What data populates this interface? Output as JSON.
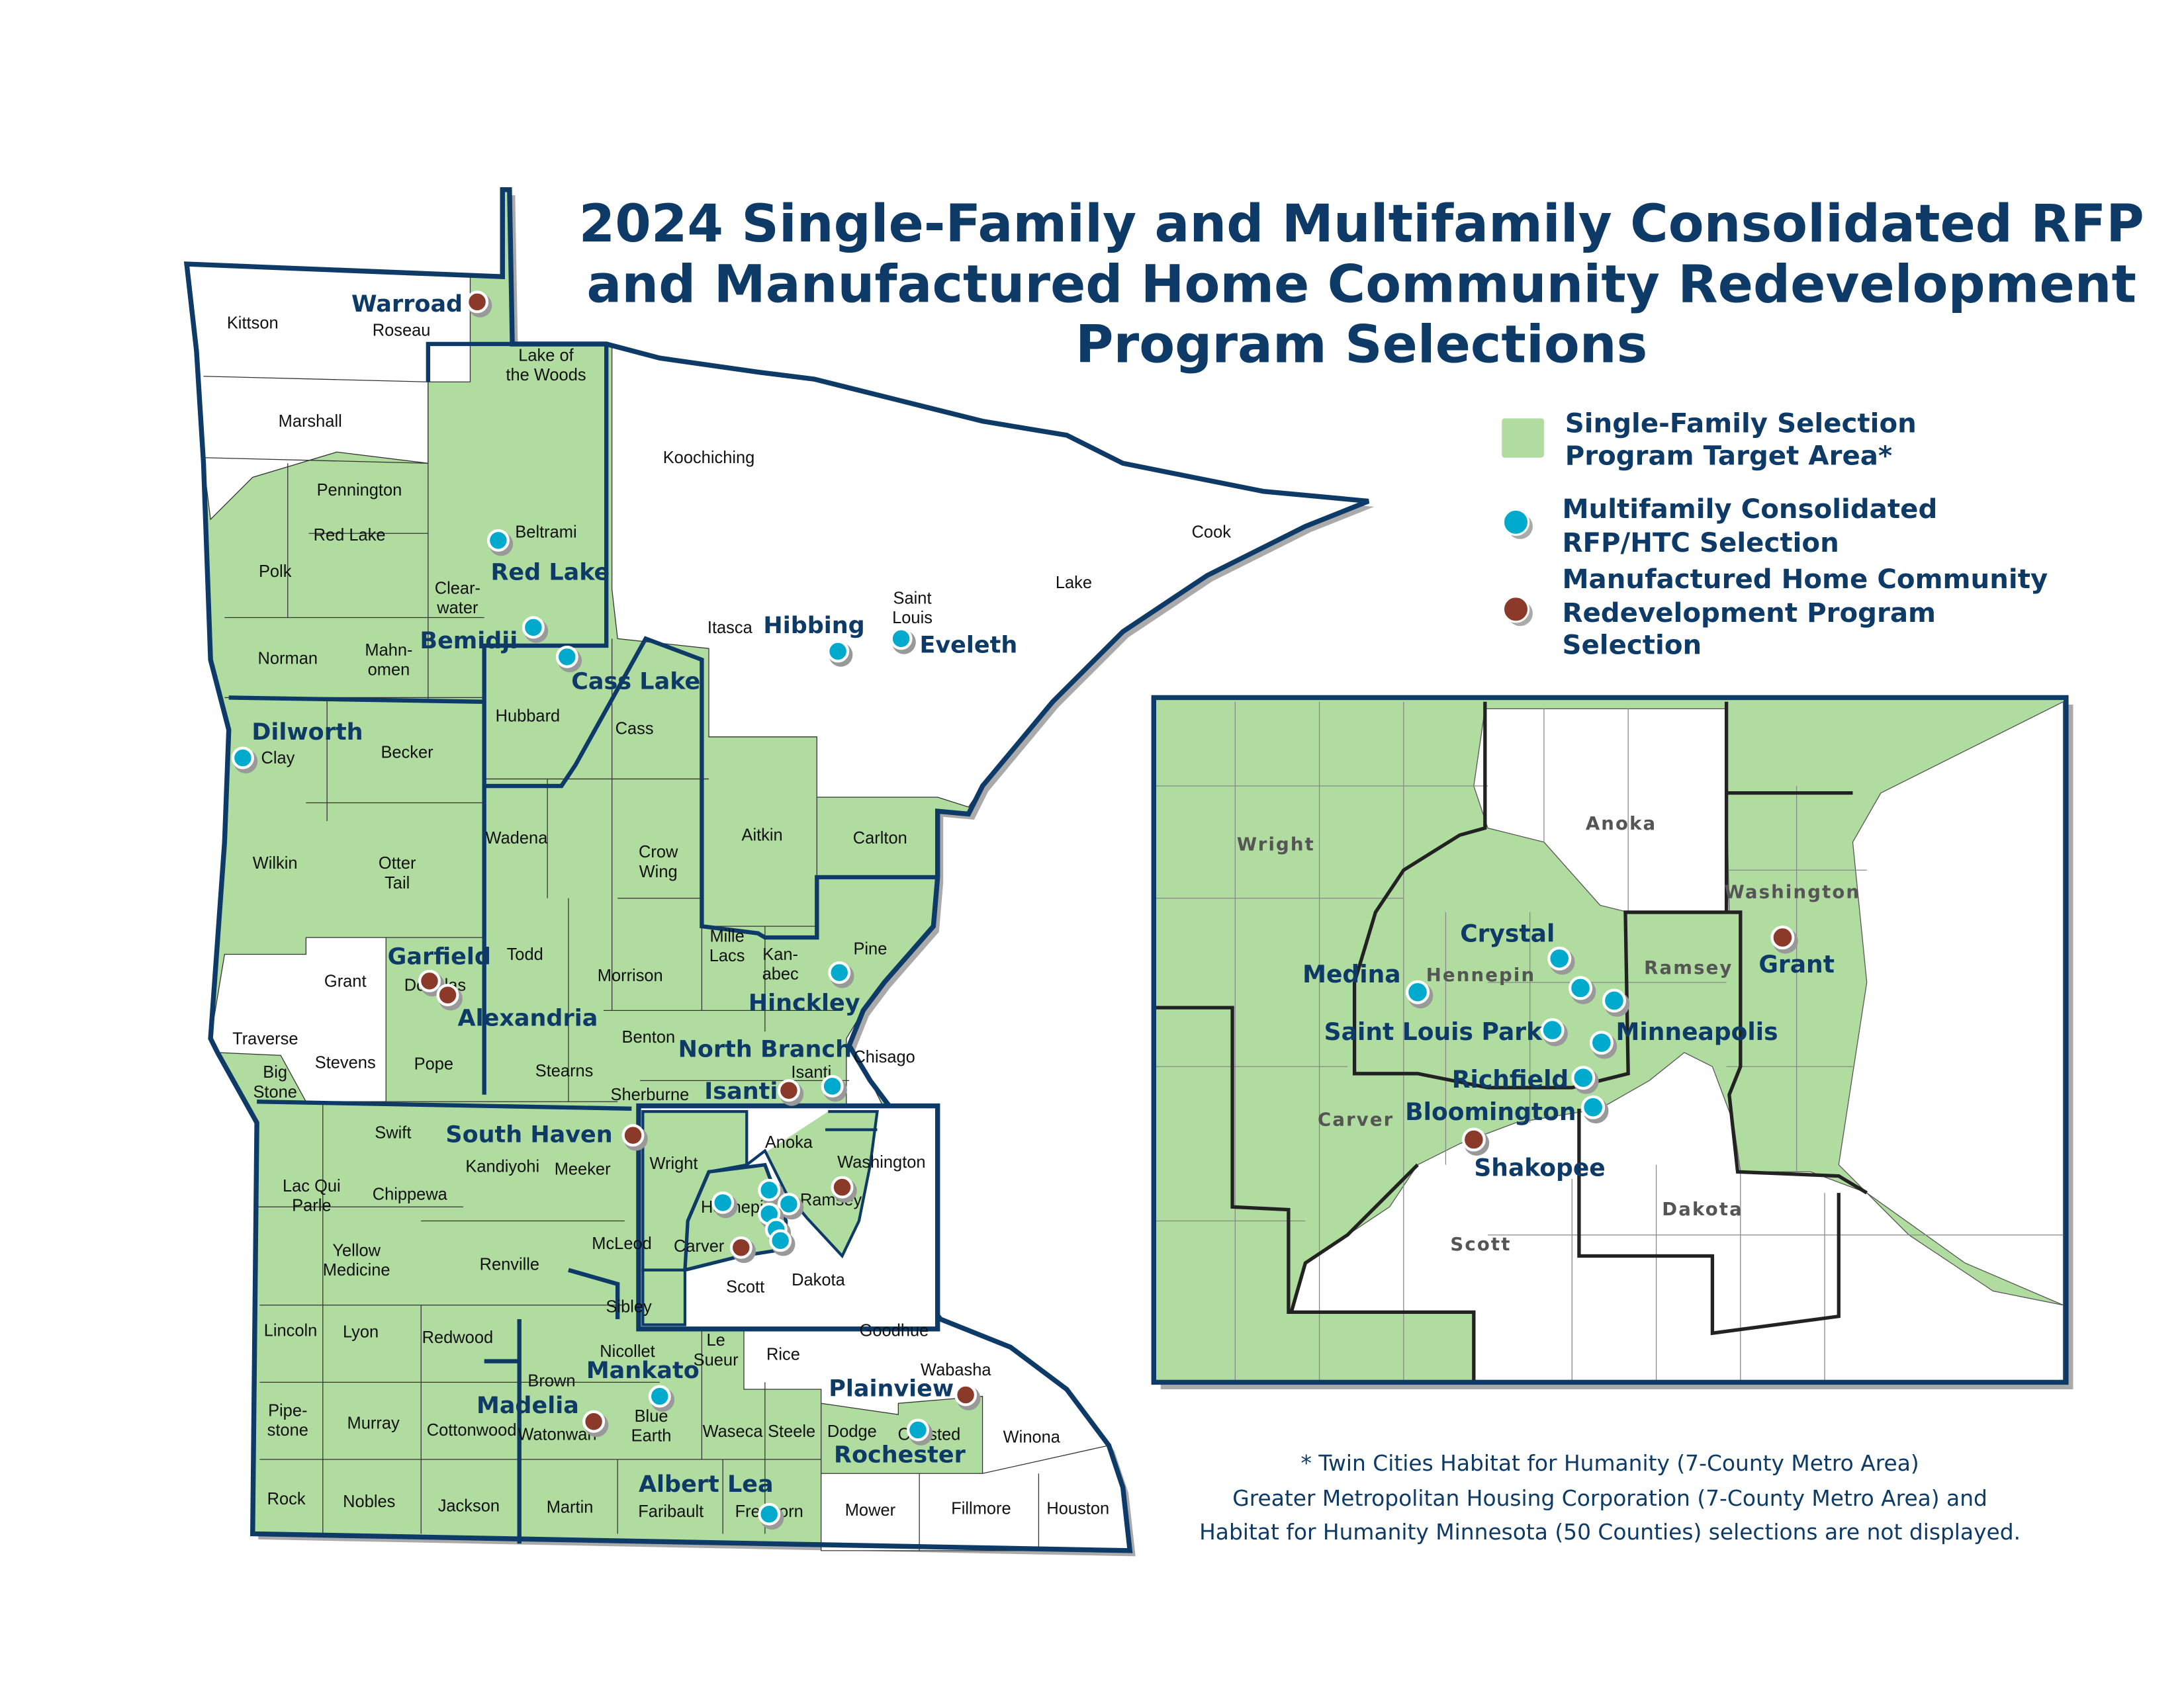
{
  "title": {
    "lines": [
      "2024 Single-Family and Multifamily Consolidated RFP",
      "and Manufactured Home Community Redevelopment",
      "Program Selections"
    ]
  },
  "colors": {
    "target_area": "#b0dca0",
    "multifamily": "#00aacc",
    "manufactured_home": "#8b3a2a",
    "border": "#0d3a66",
    "text": "#0d3a66"
  },
  "legend": {
    "items": [
      {
        "symbol": "green-square",
        "lines": [
          "Single-Family Selection",
          "Program Target Area*"
        ]
      },
      {
        "symbol": "blue-dot",
        "lines": [
          "Multifamily Consolidated",
          "RFP/HTC Selection"
        ]
      },
      {
        "symbol": "brown-dot",
        "lines": [
          "Manufactured Home Community",
          "Redevelopment Program",
          "Selection"
        ]
      }
    ]
  },
  "footnote": {
    "lines": [
      "* Twin Cities Habitat for Humanity (7-County Metro Area)",
      "Greater Metropolitan Housing Corporation (7-County Metro Area) and",
      "Habitat for Humanity Minnesota (50 Counties) selections are not displayed."
    ]
  },
  "main_map": {
    "county_labels": [
      "Kittson",
      "Roseau",
      "Lake of\nthe Woods",
      "Marshall",
      "Koochiching",
      "Pennington",
      "Red Lake",
      "Beltrami",
      "Polk",
      "Clear-\nwater",
      "Cook",
      "Lake",
      "Saint\nLouis",
      "Itasca",
      "Norman",
      "Mahn-\nomen",
      "Hubbard",
      "Cass",
      "Clay",
      "Becker",
      "Wadena",
      "Crow\nWing",
      "Aitkin",
      "Carlton",
      "Wilkin",
      "Otter\nTail",
      "Todd",
      "Mille\nLacs",
      "Kan-\nabec",
      "Pine",
      "Morrison",
      "Grant",
      "Douglas",
      "Traverse",
      "Stevens",
      "Pope",
      "Benton",
      "Chisago",
      "Isanti",
      "Stearns",
      "Big\nStone",
      "Sherburne",
      "Swift",
      "Anoka",
      "Kandiyohi",
      "Meeker",
      "Wright",
      "Washington",
      "Lac Qui\nParle",
      "Chippewa",
      "Hennepin",
      "Ramsey",
      "McLeod",
      "Carver",
      "Yellow\nMedicine",
      "Renville",
      "Scott",
      "Dakota",
      "Sibley",
      "Goodhue",
      "Lincoln",
      "Lyon",
      "Redwood",
      "Nicollet",
      "Le\nSueur",
      "Rice",
      "Wabasha",
      "Brown",
      "Pipe-\nstone",
      "Murray",
      "Cottonwood",
      "Watonwan",
      "Blue\nEarth",
      "Waseca",
      "Steele",
      "Dodge",
      "Olmsted",
      "Winona",
      "Rock",
      "Nobles",
      "Jackson",
      "Martin",
      "Faribault",
      "Freeborn",
      "Mower",
      "Fillmore",
      "Houston"
    ],
    "cities": [
      {
        "name": "Warroad",
        "markers": [
          "manufactured_home"
        ]
      },
      {
        "name": "Red Lake",
        "markers": [
          "multifamily"
        ]
      },
      {
        "name": "Bemidji",
        "markers": [
          "multifamily"
        ]
      },
      {
        "name": "Cass Lake",
        "markers": [
          "multifamily"
        ]
      },
      {
        "name": "Hibbing",
        "markers": [
          "multifamily"
        ]
      },
      {
        "name": "Eveleth",
        "markers": [
          "multifamily"
        ]
      },
      {
        "name": "Dilworth",
        "markers": [
          "multifamily"
        ]
      },
      {
        "name": "Garfield",
        "markers": [
          "manufactured_home"
        ]
      },
      {
        "name": "Alexandria",
        "markers": [
          "manufactured_home"
        ]
      },
      {
        "name": "Hinckley",
        "markers": [
          "multifamily"
        ]
      },
      {
        "name": "North Branch",
        "markers": [
          "multifamily"
        ]
      },
      {
        "name": "Isanti",
        "markers": [
          "manufactured_home"
        ]
      },
      {
        "name": "South Haven",
        "markers": [
          "manufactured_home"
        ]
      },
      {
        "name": "Mankato",
        "markers": [
          "multifamily"
        ]
      },
      {
        "name": "Madelia",
        "markers": [
          "manufactured_home"
        ]
      },
      {
        "name": "Plainview",
        "markers": [
          "manufactured_home"
        ]
      },
      {
        "name": "Rochester",
        "markers": [
          "multifamily"
        ]
      },
      {
        "name": "Albert Lea",
        "markers": [
          "multifamily"
        ]
      }
    ],
    "metro_markers": [
      "multifamily",
      "multifamily",
      "multifamily",
      "multifamily",
      "multifamily",
      "multifamily",
      "manufactured_home",
      "manufactured_home"
    ]
  },
  "inset": {
    "county_labels": [
      "Wright",
      "Anoka",
      "Washington",
      "Hennepin",
      "Ramsey",
      "Carver",
      "Scott",
      "Dakota"
    ],
    "cities": [
      {
        "name": "Crystal",
        "markers": [
          "multifamily",
          "multifamily",
          "multifamily"
        ]
      },
      {
        "name": "Medina",
        "markers": [
          "multifamily"
        ]
      },
      {
        "name": "Grant",
        "markers": [
          "manufactured_home"
        ]
      },
      {
        "name": "Saint Louis Park",
        "markers": [
          "multifamily"
        ]
      },
      {
        "name": "Minneapolis",
        "markers": [
          "multifamily"
        ]
      },
      {
        "name": "Richfield",
        "markers": [
          "multifamily"
        ]
      },
      {
        "name": "Bloomington",
        "markers": [
          "multifamily"
        ]
      },
      {
        "name": "Shakopee",
        "markers": [
          "manufactured_home"
        ]
      }
    ]
  }
}
